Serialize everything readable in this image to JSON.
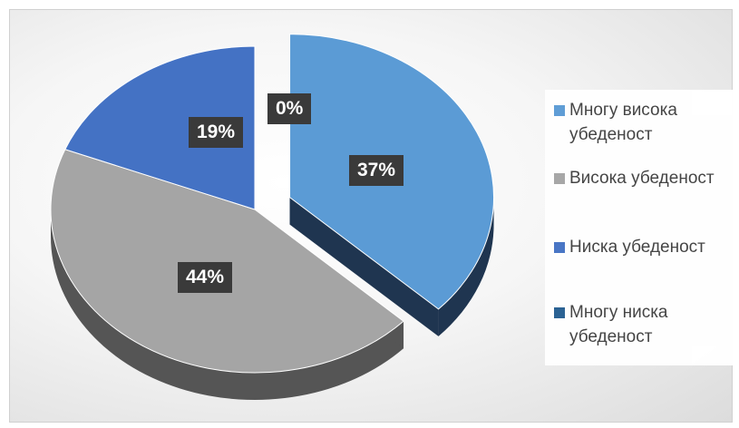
{
  "chart_data": {
    "type": "pie",
    "title": "",
    "categories": [
      "Многу висока убеденост",
      "Висока убеденост",
      "Ниска убеденост",
      "Многу ниска убеденост"
    ],
    "values": [
      37,
      44,
      19,
      0
    ],
    "labels": [
      "37%",
      "44%",
      "19%",
      "0%"
    ],
    "colors": [
      "#5b9bd5",
      "#a5a5a5",
      "#4472c4",
      "#255e91"
    ],
    "side_colors": [
      "#1f3550",
      "#555555",
      "#1a2c4f",
      "#142a40"
    ],
    "legend_position": "right",
    "style": "3d-exploded"
  }
}
